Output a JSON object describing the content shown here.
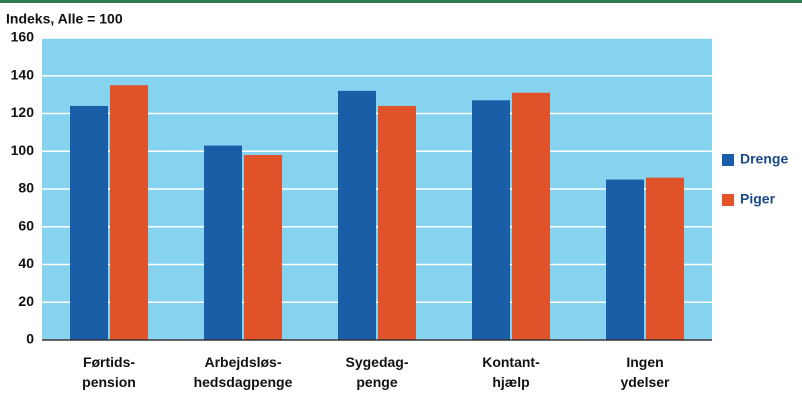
{
  "chart_data": {
    "type": "bar",
    "y_axis_title": "Indeks, Alle = 100",
    "categories": [
      "Førtids-\npension",
      "Arbejdsløs-\nhedsdagpenge",
      "Sygedag-\npenge",
      "Kontant-\nhjælp",
      "Ingen\nydelser"
    ],
    "series": [
      {
        "name": "Drenge",
        "color": "#1a5ea8",
        "values": [
          124,
          103,
          132,
          127,
          85
        ]
      },
      {
        "name": "Piger",
        "color": "#e0522a",
        "values": [
          135,
          98,
          124,
          131,
          86
        ]
      }
    ],
    "ylim": [
      0,
      160
    ],
    "yticks": [
      0,
      20,
      40,
      60,
      80,
      100,
      120,
      140,
      160
    ],
    "grid": true,
    "plot_background": "#86d3f0",
    "legend": "right"
  }
}
